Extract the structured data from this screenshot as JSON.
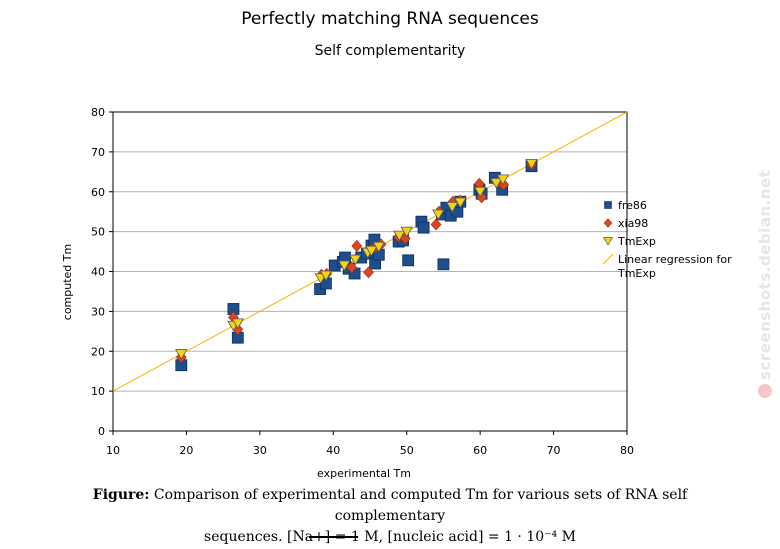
{
  "watermark": "screenshots.debian.net",
  "caption": {
    "label": "Figure:",
    "line1": "Comparison of experimental and computed Tm for various sets of RNA self complementary",
    "line2": "sequences. [Na+] = 1 M, [nucleic acid] = 1 · 10⁻⁴ M"
  },
  "chart_data": {
    "type": "scatter",
    "title": "Perfectly matching RNA sequences",
    "subtitle": "Self complementarity",
    "xlabel": "experimental Tm",
    "ylabel": "computed Tm",
    "xlim": [
      10,
      80
    ],
    "ylim": [
      0,
      80
    ],
    "xticks": [
      10,
      20,
      30,
      40,
      50,
      60,
      70,
      80
    ],
    "yticks": [
      0,
      10,
      20,
      30,
      40,
      50,
      60,
      70,
      80
    ],
    "grid": "horizontal",
    "legend_position": "right",
    "series": [
      {
        "name": "fre86",
        "marker": "square",
        "color": "#1f4e8c",
        "points": [
          [
            19.3,
            16.5
          ],
          [
            26.4,
            30.6
          ],
          [
            27,
            23.4
          ],
          [
            38.2,
            35.6
          ],
          [
            39,
            37
          ],
          [
            40.2,
            41.5
          ],
          [
            41.3,
            42.4
          ],
          [
            41.6,
            43.5
          ],
          [
            42.1,
            40.7
          ],
          [
            42.9,
            39.5
          ],
          [
            43.8,
            43.5
          ],
          [
            44.6,
            44.5
          ],
          [
            45.2,
            46.5
          ],
          [
            45.6,
            48
          ],
          [
            45.7,
            42
          ],
          [
            46.2,
            44.2
          ],
          [
            48.9,
            47.5
          ],
          [
            49.5,
            47.8
          ],
          [
            50.2,
            42.8
          ],
          [
            52,
            52.5
          ],
          [
            52.3,
            51
          ],
          [
            54.8,
            54.3
          ],
          [
            55,
            41.8
          ],
          [
            55.4,
            56
          ],
          [
            56,
            54
          ],
          [
            56.9,
            55
          ],
          [
            57.3,
            57.5
          ],
          [
            59.9,
            60.5
          ],
          [
            60.2,
            59.5
          ],
          [
            62,
            63.5
          ],
          [
            63,
            60.5
          ],
          [
            67,
            66.4
          ]
        ]
      },
      {
        "name": "xia98",
        "marker": "diamond",
        "color": "#e0441c",
        "points": [
          [
            19.3,
            18.5
          ],
          [
            26.4,
            28.5
          ],
          [
            27,
            25.5
          ],
          [
            38.4,
            39.2
          ],
          [
            39.1,
            39.4
          ],
          [
            42.5,
            41
          ],
          [
            43.2,
            46.4
          ],
          [
            44.8,
            39.8
          ],
          [
            45.2,
            45.6
          ],
          [
            45.8,
            46.2
          ],
          [
            46.5,
            46.8
          ],
          [
            48.9,
            48.7
          ],
          [
            49.8,
            48.3
          ],
          [
            54,
            51.8
          ],
          [
            54.4,
            55
          ],
          [
            56.3,
            57.5
          ],
          [
            57.3,
            57.8
          ],
          [
            59.9,
            62
          ],
          [
            60.2,
            58.6
          ],
          [
            62.4,
            62.4
          ],
          [
            63.2,
            61.8
          ],
          [
            67,
            66.8
          ]
        ]
      },
      {
        "name": "TmExp",
        "marker": "triangle",
        "color": "#f2d21b",
        "points": [
          [
            19.3,
            19.3
          ],
          [
            26.4,
            26.4
          ],
          [
            27,
            27
          ],
          [
            38.3,
            38.3
          ],
          [
            39,
            39
          ],
          [
            41.5,
            41.5
          ],
          [
            43,
            43
          ],
          [
            44.7,
            44.7
          ],
          [
            45.2,
            45.2
          ],
          [
            46.2,
            46.2
          ],
          [
            49,
            49
          ],
          [
            50,
            50
          ],
          [
            54.3,
            54.3
          ],
          [
            56.2,
            56.2
          ],
          [
            57.3,
            57.3
          ],
          [
            60,
            60
          ],
          [
            62.2,
            62.2
          ],
          [
            63.1,
            63.1
          ],
          [
            67,
            67
          ]
        ]
      },
      {
        "name": "Linear regression for TmExp",
        "type": "line",
        "color": "#f2b705",
        "points": [
          [
            10,
            10
          ],
          [
            80,
            80
          ]
        ]
      }
    ]
  }
}
